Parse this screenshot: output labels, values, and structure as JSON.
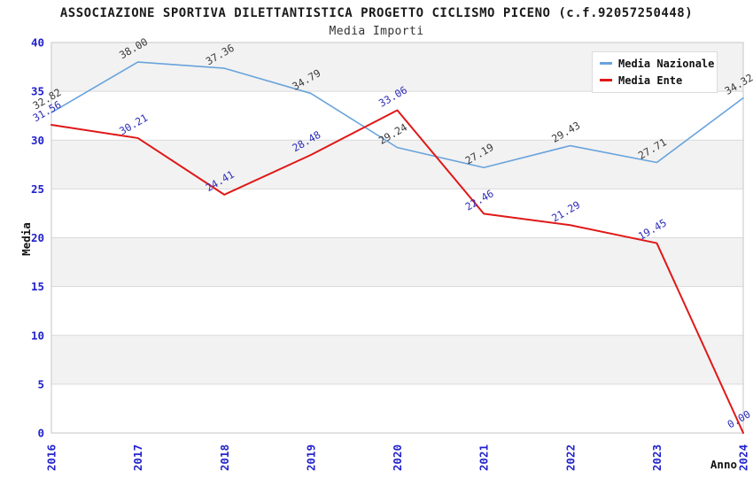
{
  "header": {
    "title": "ASSOCIAZIONE SPORTIVA DILETTANTISTICA PROGETTO CICLISMO PICENO (c.f.92057250448)",
    "subtitle": "Media Importi"
  },
  "chart_data": {
    "type": "line",
    "title": "Media Importi",
    "xlabel": "Anno",
    "ylabel": "Media",
    "x": [
      "2016",
      "2017",
      "2018",
      "2019",
      "2020",
      "2021",
      "2022",
      "2023",
      "2024"
    ],
    "ylim": [
      0,
      40
    ],
    "ytick_step": 5,
    "yticks": [
      0,
      5,
      10,
      15,
      20,
      25,
      30,
      35,
      40
    ],
    "grid": "horizontal-bands-alternating",
    "legend_position": "top-right",
    "axis_color": "#2222cc",
    "band_color": "#f2f2f2",
    "grid_color": "#dadada",
    "border_color": "#c6c6c6",
    "series": [
      {
        "name": "Media Nazionale",
        "color": "#69a3dc",
        "label_color": "#3a3a3a",
        "line_width": 1.6,
        "values": [
          32.82,
          38.0,
          37.36,
          34.79,
          29.24,
          27.19,
          29.43,
          27.71,
          34.32
        ]
      },
      {
        "name": "Media Ente",
        "color": "#e01818",
        "label_color": "#2d2db8",
        "line_width": 2,
        "values": [
          31.56,
          30.21,
          24.41,
          28.48,
          33.06,
          22.46,
          21.29,
          19.45,
          0.0
        ]
      }
    ]
  }
}
